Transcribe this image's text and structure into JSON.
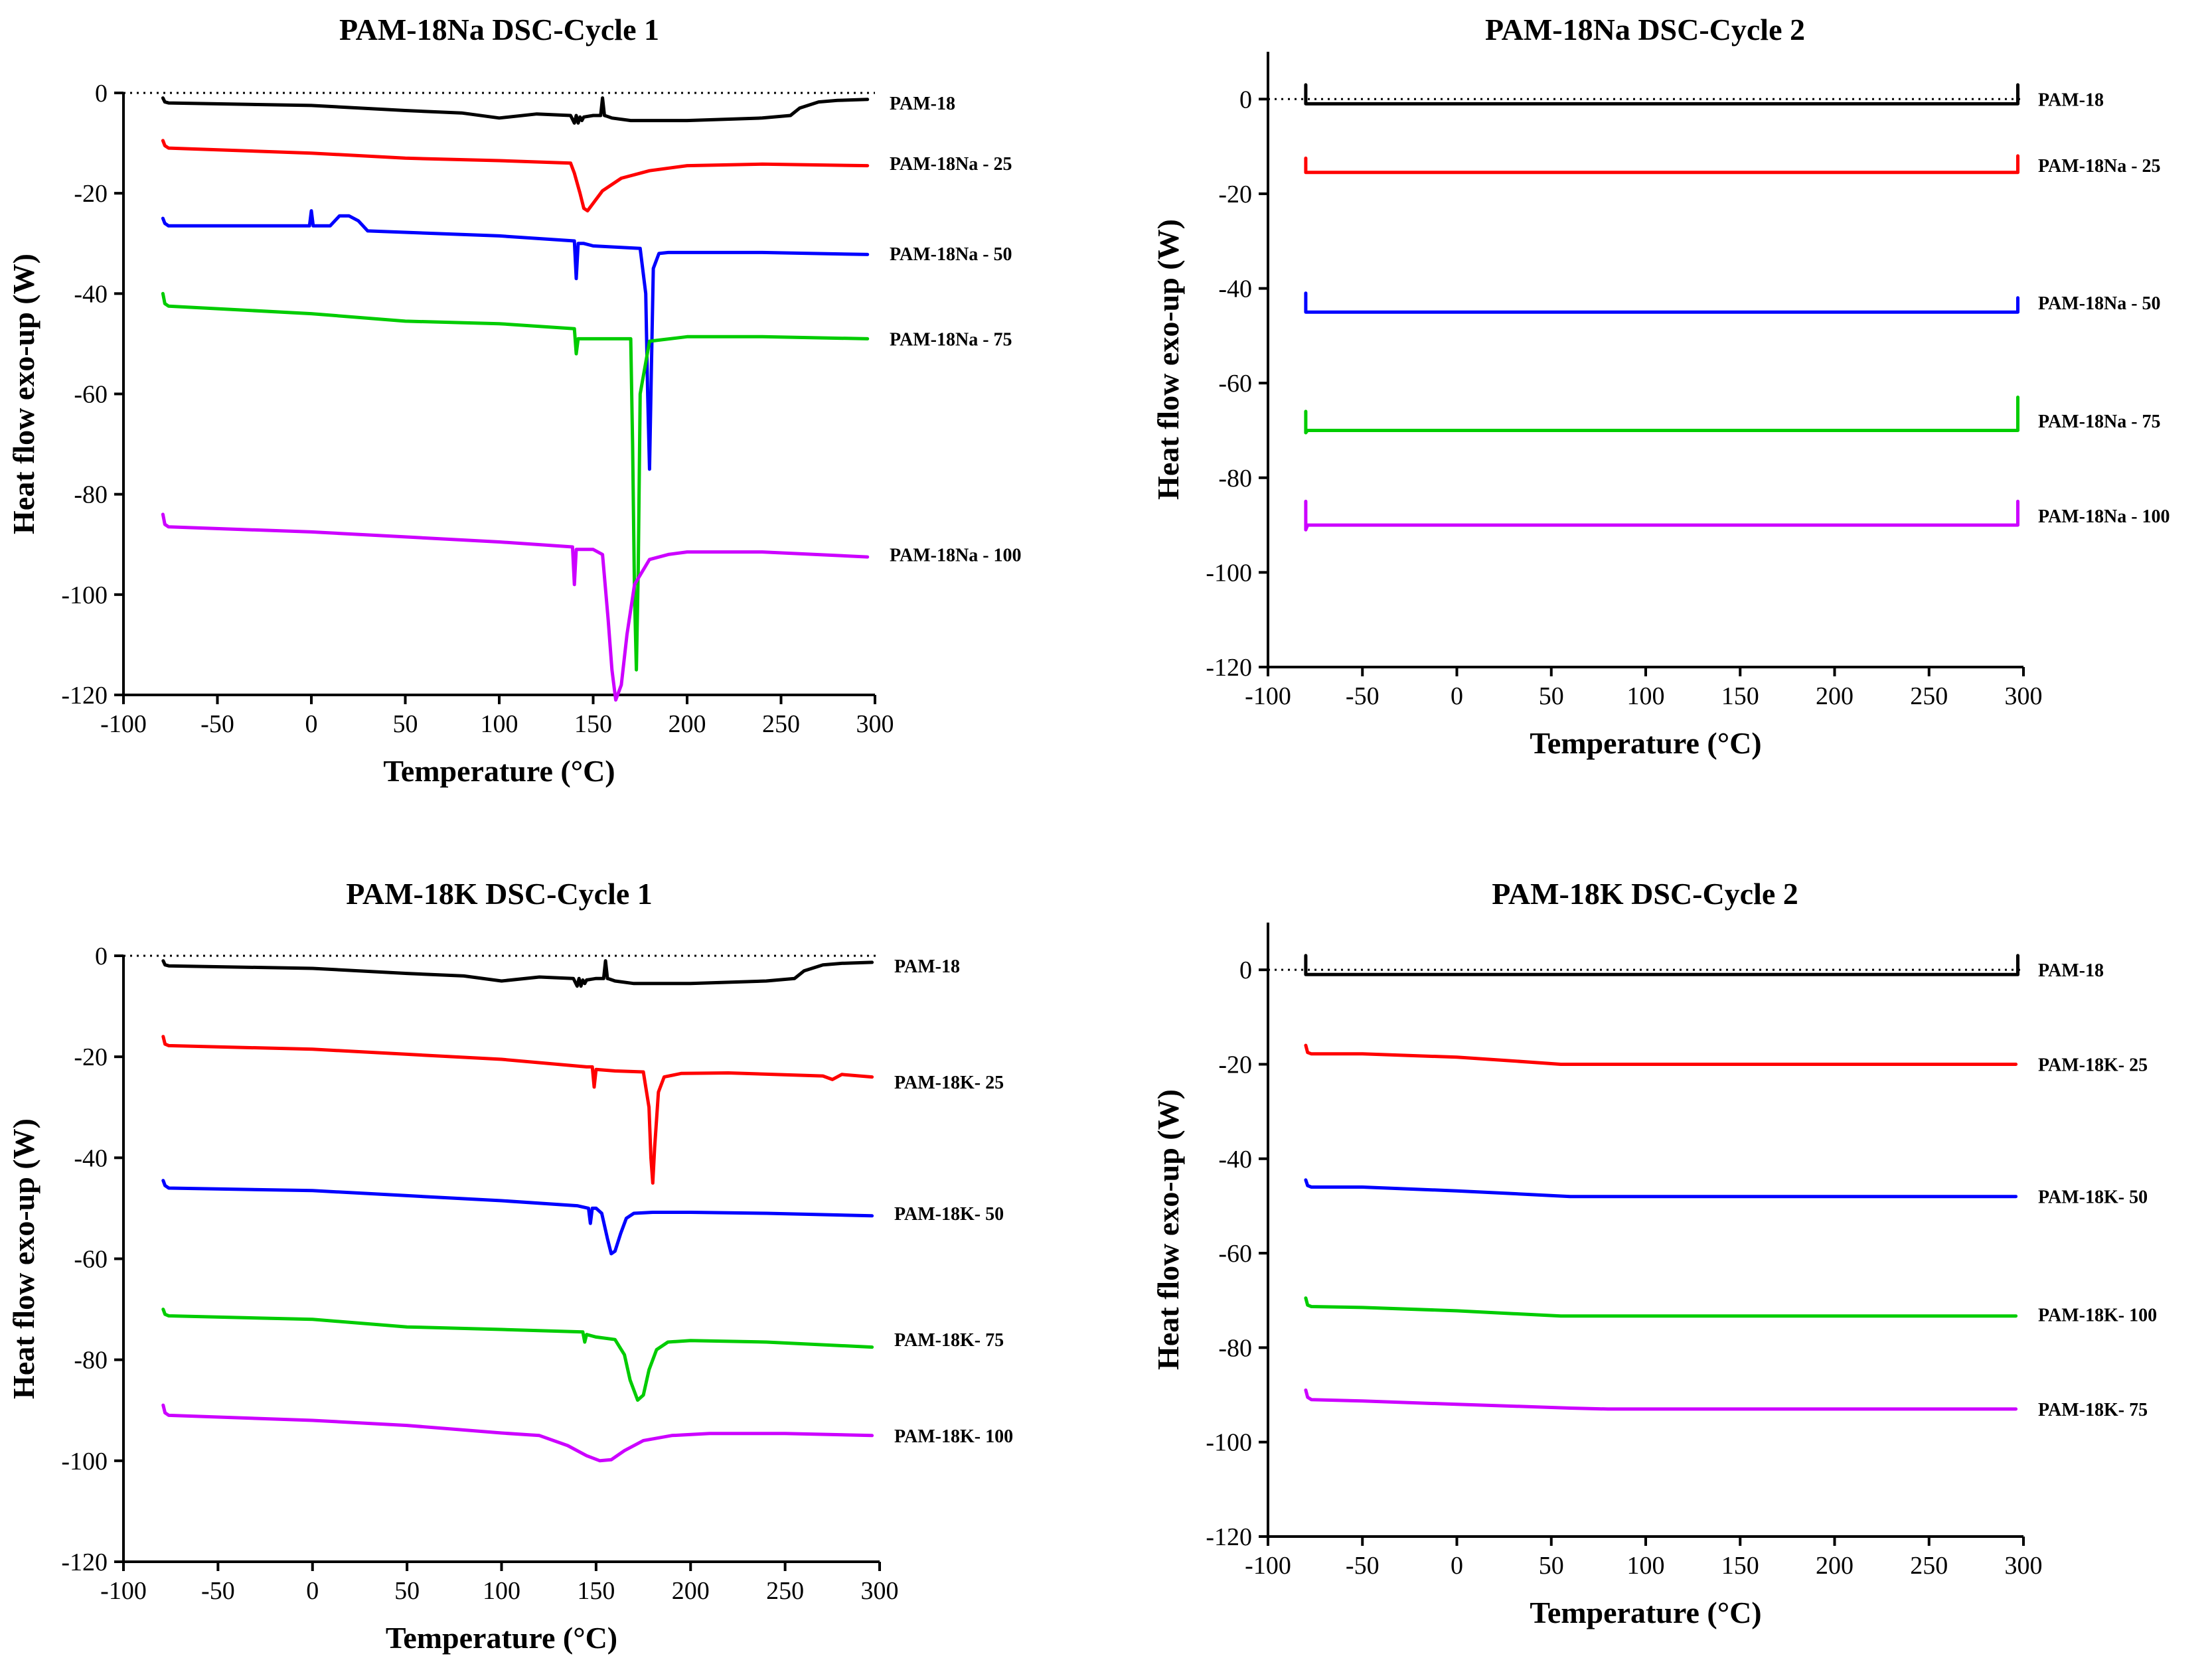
{
  "figure": {
    "colors": {
      "black": "#000000",
      "red": "#ff0000",
      "blue": "#0000ff",
      "green": "#00cc00",
      "magenta": "#cc00ff"
    }
  },
  "chart_data": [
    {
      "id": "na-cycle1",
      "type": "line",
      "title": "PAM-18Na DSC-Cycle 1",
      "xlabel": "Temperature (°C)",
      "ylabel": "Heat flow exo-up (W)",
      "xlim": [
        -100,
        300
      ],
      "ylim": [
        -120,
        0
      ],
      "xticks": [
        -100,
        -50,
        0,
        50,
        100,
        150,
        200,
        250,
        300
      ],
      "yticks": [
        0,
        -20,
        -40,
        -60,
        -80,
        -100,
        -120
      ],
      "xtick_labels": [
        "-100",
        "-50",
        "0",
        "50",
        "100",
        "150",
        "200",
        "250",
        "300"
      ],
      "ytick_labels": [
        "0",
        "-20",
        "-40",
        "-60",
        "-80",
        "-100",
        "-120"
      ],
      "zero_line": "dotted",
      "series": [
        {
          "name": "PAM-18",
          "color": "#000000",
          "label_y": -2,
          "x": [
            -79,
            -78,
            -76,
            0,
            50,
            80,
            100,
            120,
            138,
            140,
            141,
            142,
            143,
            144,
            145,
            150,
            154,
            155,
            156,
            157,
            160,
            170,
            200,
            240,
            255,
            260,
            270,
            280,
            296
          ],
          "y": [
            -1,
            -1.8,
            -2,
            -2.5,
            -3.5,
            -4,
            -5,
            -4.2,
            -4.5,
            -6,
            -4.5,
            -6,
            -4.8,
            -5.5,
            -4.8,
            -4.5,
            -4.5,
            -1,
            -4.5,
            -4.6,
            -5,
            -5.5,
            -5.5,
            -5,
            -4.5,
            -3,
            -1.8,
            -1.5,
            -1.3
          ]
        },
        {
          "name": "PAM-18Na - 25",
          "color": "#ff0000",
          "label_y": -14,
          "x": [
            -79,
            -78,
            -76,
            0,
            50,
            100,
            138,
            140,
            143,
            145,
            147,
            150,
            155,
            165,
            180,
            200,
            240,
            296
          ],
          "y": [
            -9.5,
            -10.5,
            -11,
            -12,
            -13,
            -13.5,
            -14,
            -16,
            -20,
            -23,
            -23.5,
            -22,
            -19.5,
            -17,
            -15.5,
            -14.5,
            -14.2,
            -14.5
          ]
        },
        {
          "name": "PAM-18Na - 50",
          "color": "#0000ff",
          "label_y": -32,
          "x": [
            -79,
            -78,
            -76,
            -1,
            0,
            1,
            10,
            15,
            20,
            25,
            30,
            100,
            140,
            141,
            142,
            143,
            145,
            150,
            175,
            178,
            179,
            180,
            181,
            182,
            185,
            190,
            240,
            296
          ],
          "y": [
            -25,
            -26,
            -26.5,
            -26.5,
            -23.5,
            -26.5,
            -26.5,
            -24.5,
            -24.5,
            -25.5,
            -27.5,
            -28.5,
            -29.5,
            -37,
            -30,
            -30,
            -30,
            -30.5,
            -31,
            -40,
            -60,
            -75,
            -55,
            -35,
            -32,
            -31.8,
            -31.8,
            -32.2
          ]
        },
        {
          "name": "PAM-18Na - 75",
          "color": "#00cc00",
          "label_y": -49,
          "x": [
            -79,
            -78,
            -76,
            0,
            50,
            100,
            140,
            141,
            142,
            143,
            145,
            160,
            170,
            171,
            172,
            173,
            174,
            175,
            180,
            200,
            240,
            296
          ],
          "y": [
            -40,
            -42,
            -42.5,
            -44,
            -45.5,
            -46,
            -47,
            -52,
            -49,
            -49,
            -49,
            -49,
            -49,
            -70,
            -100,
            -115,
            -95,
            -60,
            -49.5,
            -48.6,
            -48.6,
            -49
          ]
        },
        {
          "name": "PAM-18Na - 100",
          "color": "#cc00ff",
          "label_y": -92,
          "x": [
            -79,
            -78,
            -76,
            0,
            50,
            100,
            139,
            140,
            141,
            142,
            143,
            150,
            155,
            158,
            160,
            162,
            165,
            168,
            172,
            180,
            190,
            200,
            240,
            296
          ],
          "y": [
            -84,
            -86,
            -86.5,
            -87.5,
            -88.5,
            -89.5,
            -90.5,
            -98,
            -91,
            -91,
            -91,
            -91,
            -92,
            -105,
            -115,
            -121,
            -118,
            -108,
            -98,
            -93,
            -92,
            -91.5,
            -91.5,
            -92.5
          ]
        }
      ]
    },
    {
      "id": "na-cycle2",
      "type": "line",
      "title": "PAM-18Na DSC-Cycle 2",
      "xlabel": "Temperature (°C)",
      "ylabel": "Heat flow exo-up (W)",
      "xlim": [
        -100,
        300
      ],
      "ylim": [
        -120,
        10
      ],
      "xticks": [
        -100,
        -50,
        0,
        50,
        100,
        150,
        200,
        250,
        300
      ],
      "yticks": [
        0,
        -20,
        -40,
        -60,
        -80,
        -100,
        -120
      ],
      "xtick_labels": [
        "-100",
        "-50",
        "0",
        "50",
        "100",
        "150",
        "200",
        "250",
        "300"
      ],
      "ytick_labels": [
        "0",
        "-20",
        "-40",
        "-60",
        "-80",
        "-100",
        "-120"
      ],
      "zero_line": "dotted",
      "series": [
        {
          "name": "PAM-18",
          "color": "#000000",
          "label_y": 0,
          "x": [
            -80,
            -80,
            -79,
            296,
            297,
            297
          ],
          "y": [
            3,
            -1,
            -1,
            -1,
            -1,
            3
          ]
        },
        {
          "name": "PAM-18Na - 25",
          "color": "#ff0000",
          "label_y": -14,
          "x": [
            -80,
            -80,
            -79,
            296,
            297,
            297
          ],
          "y": [
            -12.5,
            -15.5,
            -15.5,
            -15.5,
            -15.5,
            -12
          ]
        },
        {
          "name": "PAM-18Na - 50",
          "color": "#0000ff",
          "label_y": -43,
          "x": [
            -80,
            -80,
            -79,
            296,
            297,
            297
          ],
          "y": [
            -41,
            -45,
            -45,
            -45,
            -45,
            -42
          ]
        },
        {
          "name": "PAM-18Na - 75",
          "color": "#00cc00",
          "label_y": -68,
          "x": [
            -80,
            -80,
            -79,
            296,
            297,
            297
          ],
          "y": [
            -66,
            -70.5,
            -70,
            -70,
            -70,
            -63
          ]
        },
        {
          "name": "PAM-18Na - 100",
          "color": "#cc00ff",
          "label_y": -88,
          "x": [
            -80,
            -80,
            -79,
            296,
            297,
            297
          ],
          "y": [
            -85,
            -91,
            -90,
            -90,
            -90,
            -85
          ]
        }
      ]
    },
    {
      "id": "k-cycle1",
      "type": "line",
      "title": "PAM-18K DSC-Cycle 1",
      "xlabel": "Temperature (°C)",
      "ylabel": "Heat flow exo-up (W)",
      "xlim": [
        -100,
        300
      ],
      "ylim": [
        -120,
        0
      ],
      "xticks": [
        -100,
        -50,
        0,
        50,
        100,
        150,
        200,
        250,
        300
      ],
      "yticks": [
        0,
        -20,
        -40,
        -60,
        -80,
        -100,
        -120
      ],
      "xtick_labels": [
        "-100",
        "-50",
        "0",
        "50",
        "100",
        "150",
        "200",
        "250",
        "300"
      ],
      "ytick_labels": [
        "0",
        "-20",
        "-40",
        "-60",
        "-80",
        "-100",
        "-120"
      ],
      "zero_line": "dotted",
      "series": [
        {
          "name": "PAM-18",
          "color": "#000000",
          "label_y": -2,
          "x": [
            -79,
            -78,
            -76,
            0,
            50,
            80,
            100,
            120,
            138,
            140,
            141,
            142,
            143,
            144,
            145,
            150,
            154,
            155,
            156,
            157,
            160,
            170,
            200,
            240,
            255,
            260,
            270,
            280,
            296
          ],
          "y": [
            -1,
            -1.8,
            -2,
            -2.5,
            -3.5,
            -4,
            -5,
            -4.2,
            -4.5,
            -6,
            -4.5,
            -6,
            -4.8,
            -5.5,
            -4.8,
            -4.5,
            -4.5,
            -1,
            -4.5,
            -4.6,
            -5,
            -5.5,
            -5.5,
            -5,
            -4.5,
            -3,
            -1.8,
            -1.5,
            -1.3
          ]
        },
        {
          "name": "PAM-18K- 25",
          "color": "#ff0000",
          "label_y": -25,
          "x": [
            -79,
            -78,
            -76,
            0,
            50,
            100,
            145,
            148,
            149,
            150,
            160,
            175,
            178,
            179,
            180,
            181,
            183,
            186,
            195,
            220,
            270,
            275,
            280,
            296
          ],
          "y": [
            -16,
            -17.5,
            -17.8,
            -18.5,
            -19.5,
            -20.5,
            -22,
            -22,
            -26,
            -22.5,
            -22.8,
            -23,
            -30,
            -40,
            -45,
            -38,
            -27,
            -24,
            -23.3,
            -23.2,
            -23.8,
            -24.5,
            -23.5,
            -24
          ]
        },
        {
          "name": "PAM-18K- 50",
          "color": "#0000ff",
          "label_y": -51,
          "x": [
            -79,
            -78,
            -76,
            0,
            50,
            100,
            140,
            146,
            147,
            148,
            150,
            153,
            156,
            158,
            160,
            163,
            166,
            170,
            180,
            200,
            240,
            296
          ],
          "y": [
            -44.5,
            -45.5,
            -46,
            -46.5,
            -47.5,
            -48.5,
            -49.5,
            -50,
            -53,
            -50,
            -50,
            -51,
            -56,
            -59,
            -58.5,
            -55,
            -52,
            -51,
            -50.8,
            -50.8,
            -51,
            -51.5
          ]
        },
        {
          "name": "PAM-18K- 75",
          "color": "#00cc00",
          "label_y": -76,
          "x": [
            -79,
            -78,
            -76,
            0,
            50,
            100,
            143,
            144,
            145,
            150,
            160,
            165,
            168,
            172,
            175,
            178,
            182,
            188,
            200,
            240,
            296
          ],
          "y": [
            -70,
            -71,
            -71.3,
            -72,
            -73.5,
            -74,
            -74.5,
            -76.5,
            -75,
            -75.5,
            -76,
            -79,
            -84,
            -88,
            -87,
            -82,
            -78,
            -76.5,
            -76.2,
            -76.5,
            -77.5
          ]
        },
        {
          "name": "PAM-18K- 100",
          "color": "#cc00ff",
          "label_y": -95,
          "x": [
            -79,
            -78,
            -76,
            0,
            50,
            100,
            120,
            135,
            145,
            152,
            158,
            165,
            175,
            190,
            210,
            250,
            296
          ],
          "y": [
            -89,
            -90.5,
            -91,
            -92,
            -93,
            -94.5,
            -95,
            -97,
            -99,
            -100,
            -99.8,
            -98,
            -96,
            -95,
            -94.6,
            -94.6,
            -95
          ]
        }
      ]
    },
    {
      "id": "k-cycle2",
      "type": "line",
      "title": "PAM-18K DSC-Cycle 2",
      "xlabel": "Temperature (°C)",
      "ylabel": "Heat flow exo-up (W)",
      "xlim": [
        -100,
        300
      ],
      "ylim": [
        -120,
        10
      ],
      "xticks": [
        -100,
        -50,
        0,
        50,
        100,
        150,
        200,
        250,
        300
      ],
      "yticks": [
        0,
        -20,
        -40,
        -60,
        -80,
        -100,
        -120
      ],
      "xtick_labels": [
        "-100",
        "-50",
        "0",
        "50",
        "100",
        "150",
        "200",
        "250",
        "300"
      ],
      "ytick_labels": [
        "0",
        "-20",
        "-40",
        "-60",
        "-80",
        "-100",
        "-120"
      ],
      "zero_line": "dotted",
      "series": [
        {
          "name": "PAM-18",
          "color": "#000000",
          "label_y": 0,
          "x": [
            -80,
            -80,
            -79,
            296,
            297,
            297
          ],
          "y": [
            3,
            -1,
            -1,
            -1,
            -1,
            3
          ]
        },
        {
          "name": "PAM-18K- 25",
          "color": "#ff0000",
          "label_y": -20,
          "x": [
            -80,
            -79,
            -77,
            -50,
            0,
            30,
            55,
            70,
            100,
            200,
            296
          ],
          "y": [
            -16,
            -17.5,
            -17.8,
            -17.8,
            -18.5,
            -19.3,
            -20,
            -20,
            -20,
            -20,
            -20
          ]
        },
        {
          "name": "PAM-18K- 50",
          "color": "#0000ff",
          "label_y": -48,
          "x": [
            -80,
            -79,
            -77,
            -50,
            0,
            30,
            60,
            80,
            100,
            200,
            296
          ],
          "y": [
            -44.5,
            -45.7,
            -46,
            -46,
            -46.8,
            -47.4,
            -48,
            -48,
            -48,
            -48,
            -48
          ]
        },
        {
          "name": "PAM-18K- 100",
          "color": "#00cc00",
          "label_y": -73,
          "x": [
            -80,
            -79,
            -77,
            -50,
            0,
            30,
            55,
            70,
            100,
            200,
            296
          ],
          "y": [
            -69.5,
            -71,
            -71.3,
            -71.5,
            -72.2,
            -72.8,
            -73.3,
            -73.3,
            -73.3,
            -73.3,
            -73.3
          ]
        },
        {
          "name": "PAM-18K- 75",
          "color": "#cc00ff",
          "label_y": -93,
          "x": [
            -80,
            -79,
            -77,
            -50,
            0,
            30,
            60,
            80,
            100,
            200,
            296
          ],
          "y": [
            -89,
            -90.5,
            -91,
            -91.3,
            -92,
            -92.4,
            -92.8,
            -93,
            -93,
            -93,
            -93
          ]
        }
      ]
    }
  ]
}
